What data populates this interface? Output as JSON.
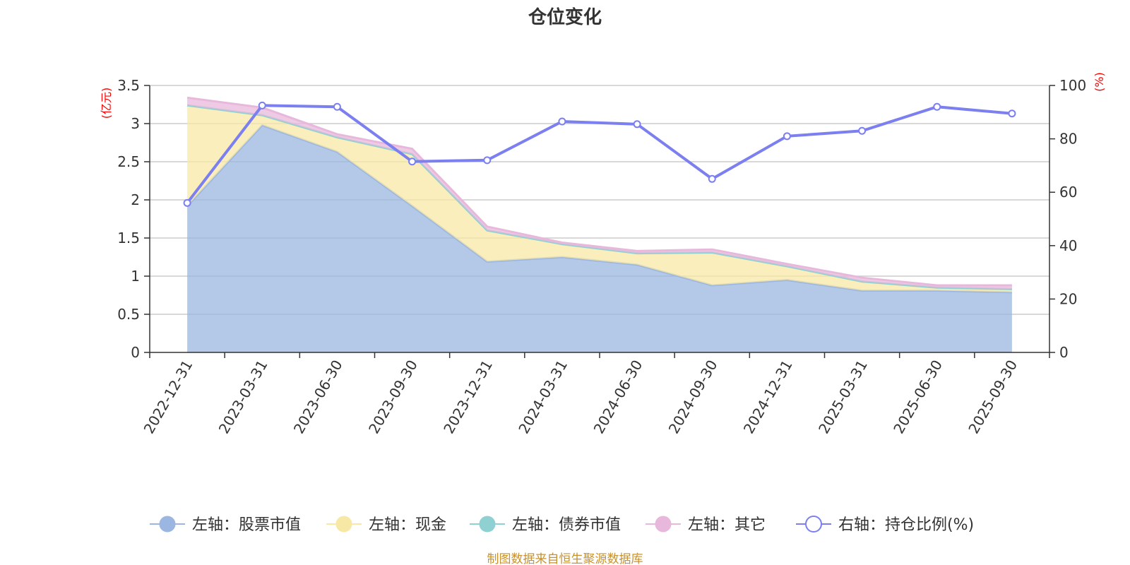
{
  "chart_data": {
    "type": "area",
    "title": "仓位变化",
    "categories": [
      "2022-12-31",
      "2023-03-31",
      "2023-06-30",
      "2023-09-30",
      "2023-12-31",
      "2024-03-31",
      "2024-06-30",
      "2024-09-30",
      "2024-12-31",
      "2025-03-31",
      "2025-06-30",
      "2025-09-30"
    ],
    "left_axis": {
      "unit": "(亿元)",
      "ylim": [
        0,
        3.5
      ],
      "ticks": [
        "0",
        "0.5",
        "1",
        "1.5",
        "2",
        "2.5",
        "3",
        "3.5"
      ],
      "tick_values": [
        0,
        0.5,
        1,
        1.5,
        2,
        2.5,
        3,
        3.5
      ]
    },
    "right_axis": {
      "unit": "(%)",
      "ylim": [
        0,
        100
      ],
      "ticks": [
        "0",
        "20",
        "40",
        "60",
        "80",
        "100"
      ],
      "tick_values": [
        0,
        20,
        40,
        60,
        80,
        100
      ]
    },
    "stacked_series": [
      {
        "name": "左轴：股票市值",
        "color": "#9bb6e0",
        "values": [
          1.92,
          2.98,
          2.63,
          1.92,
          1.19,
          1.25,
          1.15,
          0.88,
          0.95,
          0.81,
          0.81,
          0.79
        ]
      },
      {
        "name": "左轴：现金",
        "color": "#f8e8a6",
        "values": [
          1.32,
          0.13,
          0.19,
          0.68,
          0.41,
          0.17,
          0.15,
          0.43,
          0.18,
          0.12,
          0.04,
          0.04
        ]
      },
      {
        "name": "左轴：债券市值",
        "color": "#8fd1d3",
        "values": [
          0,
          0,
          0,
          0,
          0,
          0,
          0,
          0,
          0,
          0,
          0,
          0
        ]
      },
      {
        "name": "左轴：其它",
        "color": "#e8b8dc",
        "values": [
          0.1,
          0.1,
          0.04,
          0.07,
          0.05,
          0.02,
          0.03,
          0.04,
          0.03,
          0.05,
          0.03,
          0.05
        ]
      }
    ],
    "line_series": {
      "name": "右轴：持仓比例(%)",
      "color": "#7b7ff0",
      "values": [
        56.0,
        92.5,
        92.0,
        71.5,
        72.0,
        86.5,
        85.5,
        65.0,
        81.0,
        83.0,
        92.0,
        89.5
      ]
    },
    "source_text": "制图数据来自恒生聚源数据库",
    "source_color": "#c8912c"
  }
}
